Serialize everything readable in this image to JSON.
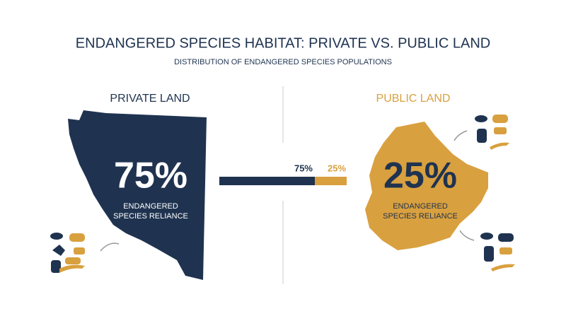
{
  "title": "ENDANGERED SPECIES HABITAT: PRIVATE VS. PUBLIC LAND",
  "subtitle": "DISTRIBUTION OF ENDANGERED SPECIES POPULATIONS",
  "private": {
    "label": "PRIVATE LAND",
    "share": 75,
    "share_label": "75%",
    "caption": [
      "ENDANGERED",
      "SPECIES RELIANCE"
    ],
    "color": "#1f3350"
  },
  "public": {
    "label": "PUBLIC LAND",
    "share": 25,
    "share_label": "25%",
    "caption": [
      "ENDANGERED",
      "SPECIES RELIANCE"
    ],
    "color": "#d9a03f"
  }
}
